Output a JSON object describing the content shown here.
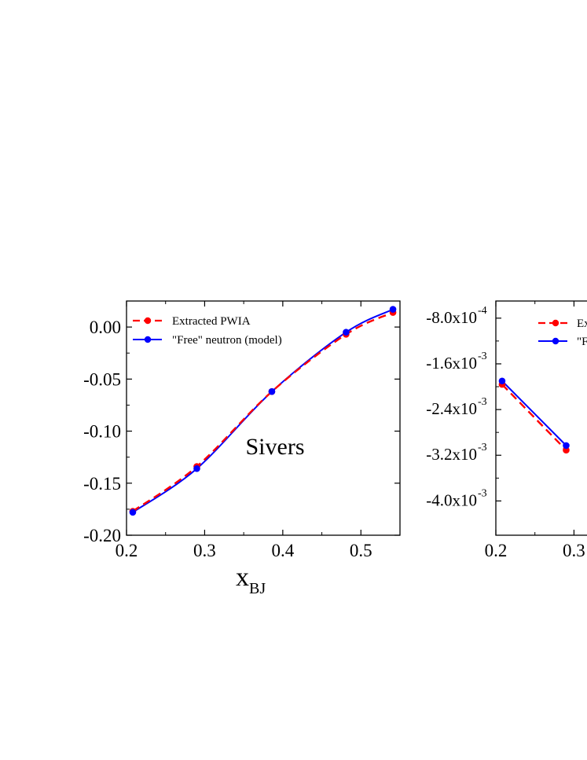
{
  "chart_data": [
    {
      "type": "line",
      "annotation": "Sivers",
      "xlabel": "x",
      "xlabel_sub": "BJ",
      "ylabel": "",
      "xlim": [
        0.2,
        0.55
      ],
      "ylim": [
        -0.2,
        0.025
      ],
      "xticks": [
        "0.2",
        "0.3",
        "0.4",
        "0.5"
      ],
      "yticks": [
        "0.00",
        "-0.05",
        "-0.10",
        "-0.15",
        "-0.20"
      ],
      "legend_position": "top-left",
      "grid": false,
      "series": [
        {
          "name": "Extracted PWIA",
          "color": "#ff0000",
          "line_style": "dashed",
          "x": [
            0.208,
            0.29,
            0.386,
            0.481,
            0.541
          ],
          "y": [
            -0.177,
            -0.134,
            -0.062,
            -0.007,
            0.014
          ]
        },
        {
          "name": "\"Free\" neutron (model)",
          "color": "#0000ff",
          "line_style": "solid",
          "x": [
            0.208,
            0.29,
            0.386,
            0.481,
            0.541
          ],
          "y": [
            -0.178,
            -0.136,
            -0.062,
            -0.005,
            0.017
          ]
        }
      ]
    },
    {
      "type": "line",
      "annotation": "",
      "xlabel": "",
      "ylabel": "",
      "xlim": [
        0.2,
        0.55
      ],
      "ylim": [
        -0.0046,
        -0.0005
      ],
      "xticks": [
        "0.2",
        "0.3"
      ],
      "yticks": [
        {
          "mantissa": "-8.0x10",
          "exp": "-4",
          "value": -0.0008
        },
        {
          "mantissa": "-1.6x10",
          "exp": "-3",
          "value": -0.0016
        },
        {
          "mantissa": "-2.4x10",
          "exp": "-3",
          "value": -0.0024
        },
        {
          "mantissa": "-3.2x10",
          "exp": "-3",
          "value": -0.0032
        },
        {
          "mantissa": "-4.0x10",
          "exp": "-3",
          "value": -0.004
        }
      ],
      "legend_position": "top-right",
      "legend_labels_visible": [
        "Ex",
        "\"F"
      ],
      "grid": false,
      "series": [
        {
          "name": "Extracted PWIA",
          "color": "#ff0000",
          "line_style": "dashed",
          "x": [
            0.208,
            0.29
          ],
          "y": [
            -0.00196,
            -0.00311
          ]
        },
        {
          "name": "\"Free\" neutron (model)",
          "color": "#0000ff",
          "line_style": "solid",
          "x": [
            0.208,
            0.29
          ],
          "y": [
            -0.0019,
            -0.00303
          ]
        }
      ]
    }
  ]
}
